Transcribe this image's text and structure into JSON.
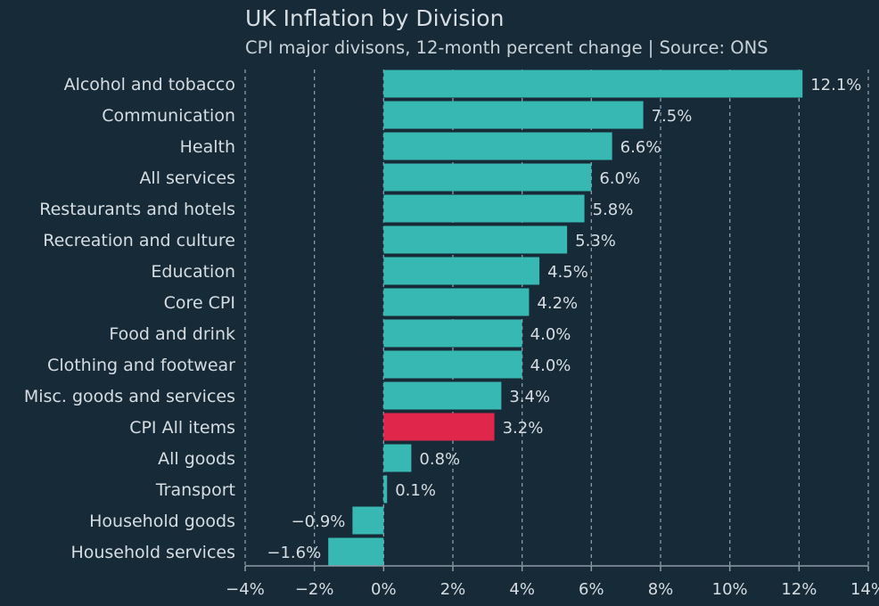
{
  "title": "UK Inflation by Division",
  "subtitle": "CPI major divisons, 12-month percent change | Source: ONS",
  "colors": {
    "background": "#162a37",
    "bar": "#38b8b3",
    "highlight": "#e0264b",
    "text": "#d6dde3",
    "grid": "#8e9ba5"
  },
  "chart_data": {
    "type": "bar",
    "orientation": "horizontal",
    "title": "UK Inflation by Division",
    "subtitle": "CPI major divisons, 12-month percent change | Source: ONS",
    "xlabel": "",
    "ylabel": "",
    "xlim": [
      -4,
      14
    ],
    "xticks": [
      -4,
      -2,
      0,
      2,
      4,
      6,
      8,
      10,
      12,
      14
    ],
    "xtick_labels": [
      "−4%",
      "−2%",
      "0%",
      "2%",
      "4%",
      "6%",
      "8%",
      "10%",
      "12%",
      "14%"
    ],
    "grid": "vertical dashed",
    "highlight_category": "CPI All items",
    "categories": [
      "Alcohol and tobacco",
      "Communication",
      "Health",
      "All services",
      "Restaurants and hotels",
      "Recreation and culture",
      "Education",
      "Core CPI",
      "Food and drink",
      "Clothing and footwear",
      "Misc. goods and services",
      "CPI All items",
      "All goods",
      "Transport",
      "Household goods",
      "Household services"
    ],
    "values": [
      12.1,
      7.5,
      6.6,
      6.0,
      5.8,
      5.3,
      4.5,
      4.2,
      4.0,
      4.0,
      3.4,
      3.2,
      0.8,
      0.1,
      -0.9,
      -1.6
    ],
    "value_labels": [
      "12.1%",
      "7.5%",
      "6.6%",
      "6.0%",
      "5.8%",
      "5.3%",
      "4.5%",
      "4.2%",
      "4.0%",
      "4.0%",
      "3.4%",
      "3.2%",
      "0.8%",
      "0.1%",
      "−0.9%",
      "−1.6%"
    ]
  }
}
